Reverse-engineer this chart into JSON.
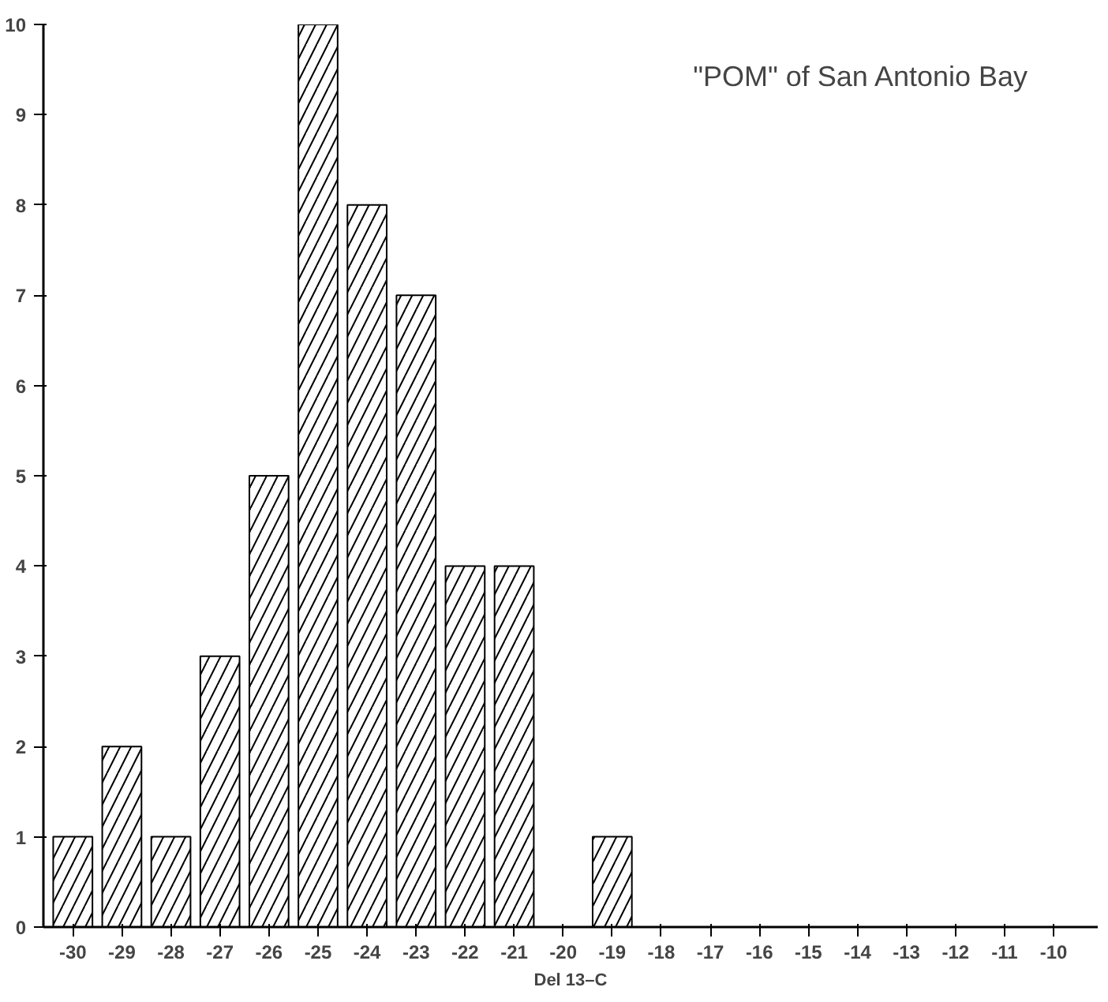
{
  "chart_data": {
    "type": "bar",
    "title": "\"POM\" of San Antonio Bay",
    "xlabel": "Del 13–C",
    "categories": [
      "-30",
      "-29",
      "-28",
      "-27",
      "-26",
      "-25",
      "-24",
      "-23",
      "-22",
      "-21",
      "-20",
      "-19",
      "-18",
      "-17",
      "-16",
      "-15",
      "-14",
      "-13",
      "-12",
      "-11",
      "-10"
    ],
    "values": [
      1,
      2,
      1,
      3,
      5,
      10,
      8,
      7,
      4,
      4,
      null,
      1,
      null,
      null,
      null,
      null,
      null,
      null,
      null,
      null,
      null
    ],
    "color": "#000000",
    "ylim": [
      0,
      10
    ],
    "yticks": [
      0,
      1,
      2,
      3,
      4,
      5,
      6,
      7,
      8,
      9,
      10
    ],
    "grid": false
  }
}
